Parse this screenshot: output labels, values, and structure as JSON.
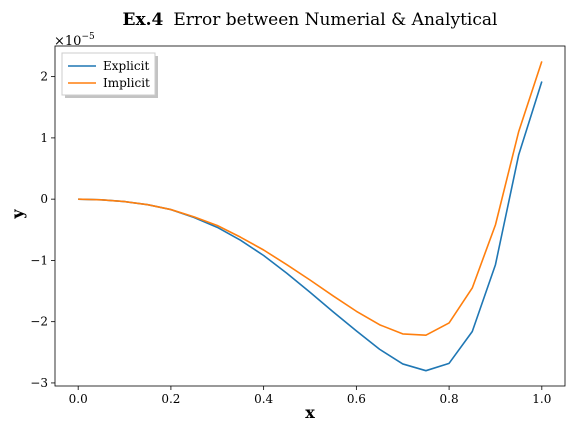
{
  "chart_data": {
    "type": "line",
    "title_bold": "Ex.4",
    "title_rest": "Error between Numerial & Analytical",
    "xlabel": "x",
    "ylabel": "y",
    "y_scale_label": "×10",
    "y_scale_exponent": "−5",
    "xlim": [
      -0.05,
      1.05
    ],
    "ylim": [
      -3.05,
      2.5
    ],
    "x_ticks": [
      0.0,
      0.2,
      0.4,
      0.6,
      0.8,
      1.0
    ],
    "x_tick_labels": [
      "0.0",
      "0.2",
      "0.4",
      "0.6",
      "0.8",
      "1.0"
    ],
    "y_ticks": [
      -3,
      -2,
      -1,
      0,
      1,
      2
    ],
    "y_tick_labels": [
      "−3",
      "−2",
      "−1",
      "0",
      "1",
      "2"
    ],
    "grid": false,
    "legend_position": "top-left",
    "series": [
      {
        "name": "Explicit",
        "color": "#1f77b4",
        "x": [
          0.0,
          0.05,
          0.1,
          0.15,
          0.2,
          0.25,
          0.3,
          0.35,
          0.4,
          0.45,
          0.5,
          0.55,
          0.6,
          0.65,
          0.7,
          0.75,
          0.8,
          0.85,
          0.9,
          0.95,
          1.0
        ],
        "y": [
          0.0,
          -0.01,
          -0.04,
          -0.09,
          -0.17,
          -0.3,
          -0.46,
          -0.67,
          -0.92,
          -1.21,
          -1.52,
          -1.84,
          -2.15,
          -2.45,
          -2.69,
          -2.8,
          -2.68,
          -2.16,
          -1.07,
          0.72,
          1.92
        ]
      },
      {
        "name": "Implicit",
        "color": "#ff7f0e",
        "x": [
          0.0,
          0.05,
          0.1,
          0.15,
          0.2,
          0.25,
          0.3,
          0.35,
          0.4,
          0.45,
          0.5,
          0.55,
          0.6,
          0.65,
          0.7,
          0.75,
          0.8,
          0.85,
          0.9,
          0.95,
          1.0
        ],
        "y": [
          0.0,
          -0.01,
          -0.04,
          -0.09,
          -0.17,
          -0.29,
          -0.43,
          -0.62,
          -0.83,
          -1.07,
          -1.32,
          -1.58,
          -1.83,
          -2.05,
          -2.2,
          -2.22,
          -2.02,
          -1.45,
          -0.42,
          1.1,
          2.25
        ]
      }
    ]
  }
}
